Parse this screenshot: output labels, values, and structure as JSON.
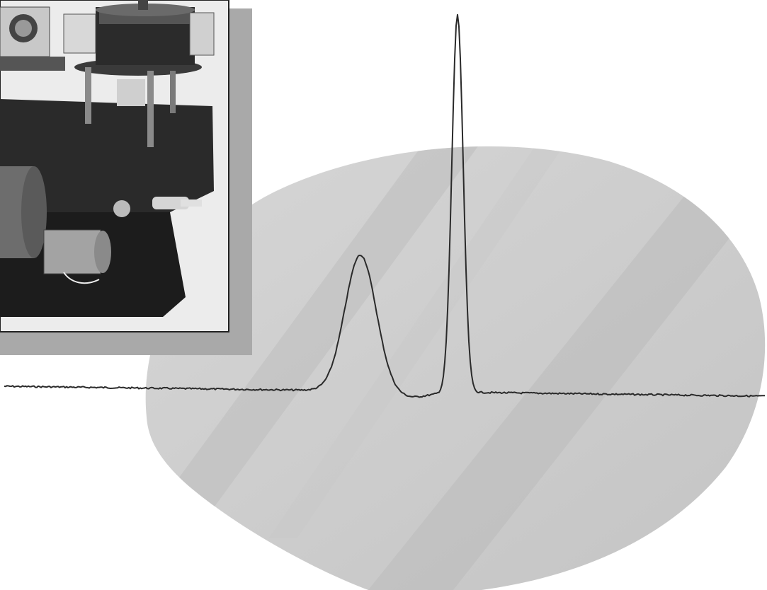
{
  "colors": {
    "paper": "#ffffff",
    "blob_light": "#d2d2d2",
    "blob_band": "#bcbcbc",
    "panel_shadow": "#aaaaaa",
    "photo_bg": "#e8e8e8",
    "photo_dark": "#1a1a1a",
    "trace": "#2a2a2a"
  },
  "photo": {
    "subject": "laboratory-instrument",
    "icon": "instrument-photo-icon"
  },
  "trace": {
    "icon": "spectrum-trace-icon",
    "peaks": [
      {
        "name": "broad-peak",
        "relative_height": 0.36,
        "relative_width": "broad"
      },
      {
        "name": "sharp-peak",
        "relative_height": 1.0,
        "relative_width": "narrow"
      }
    ]
  }
}
